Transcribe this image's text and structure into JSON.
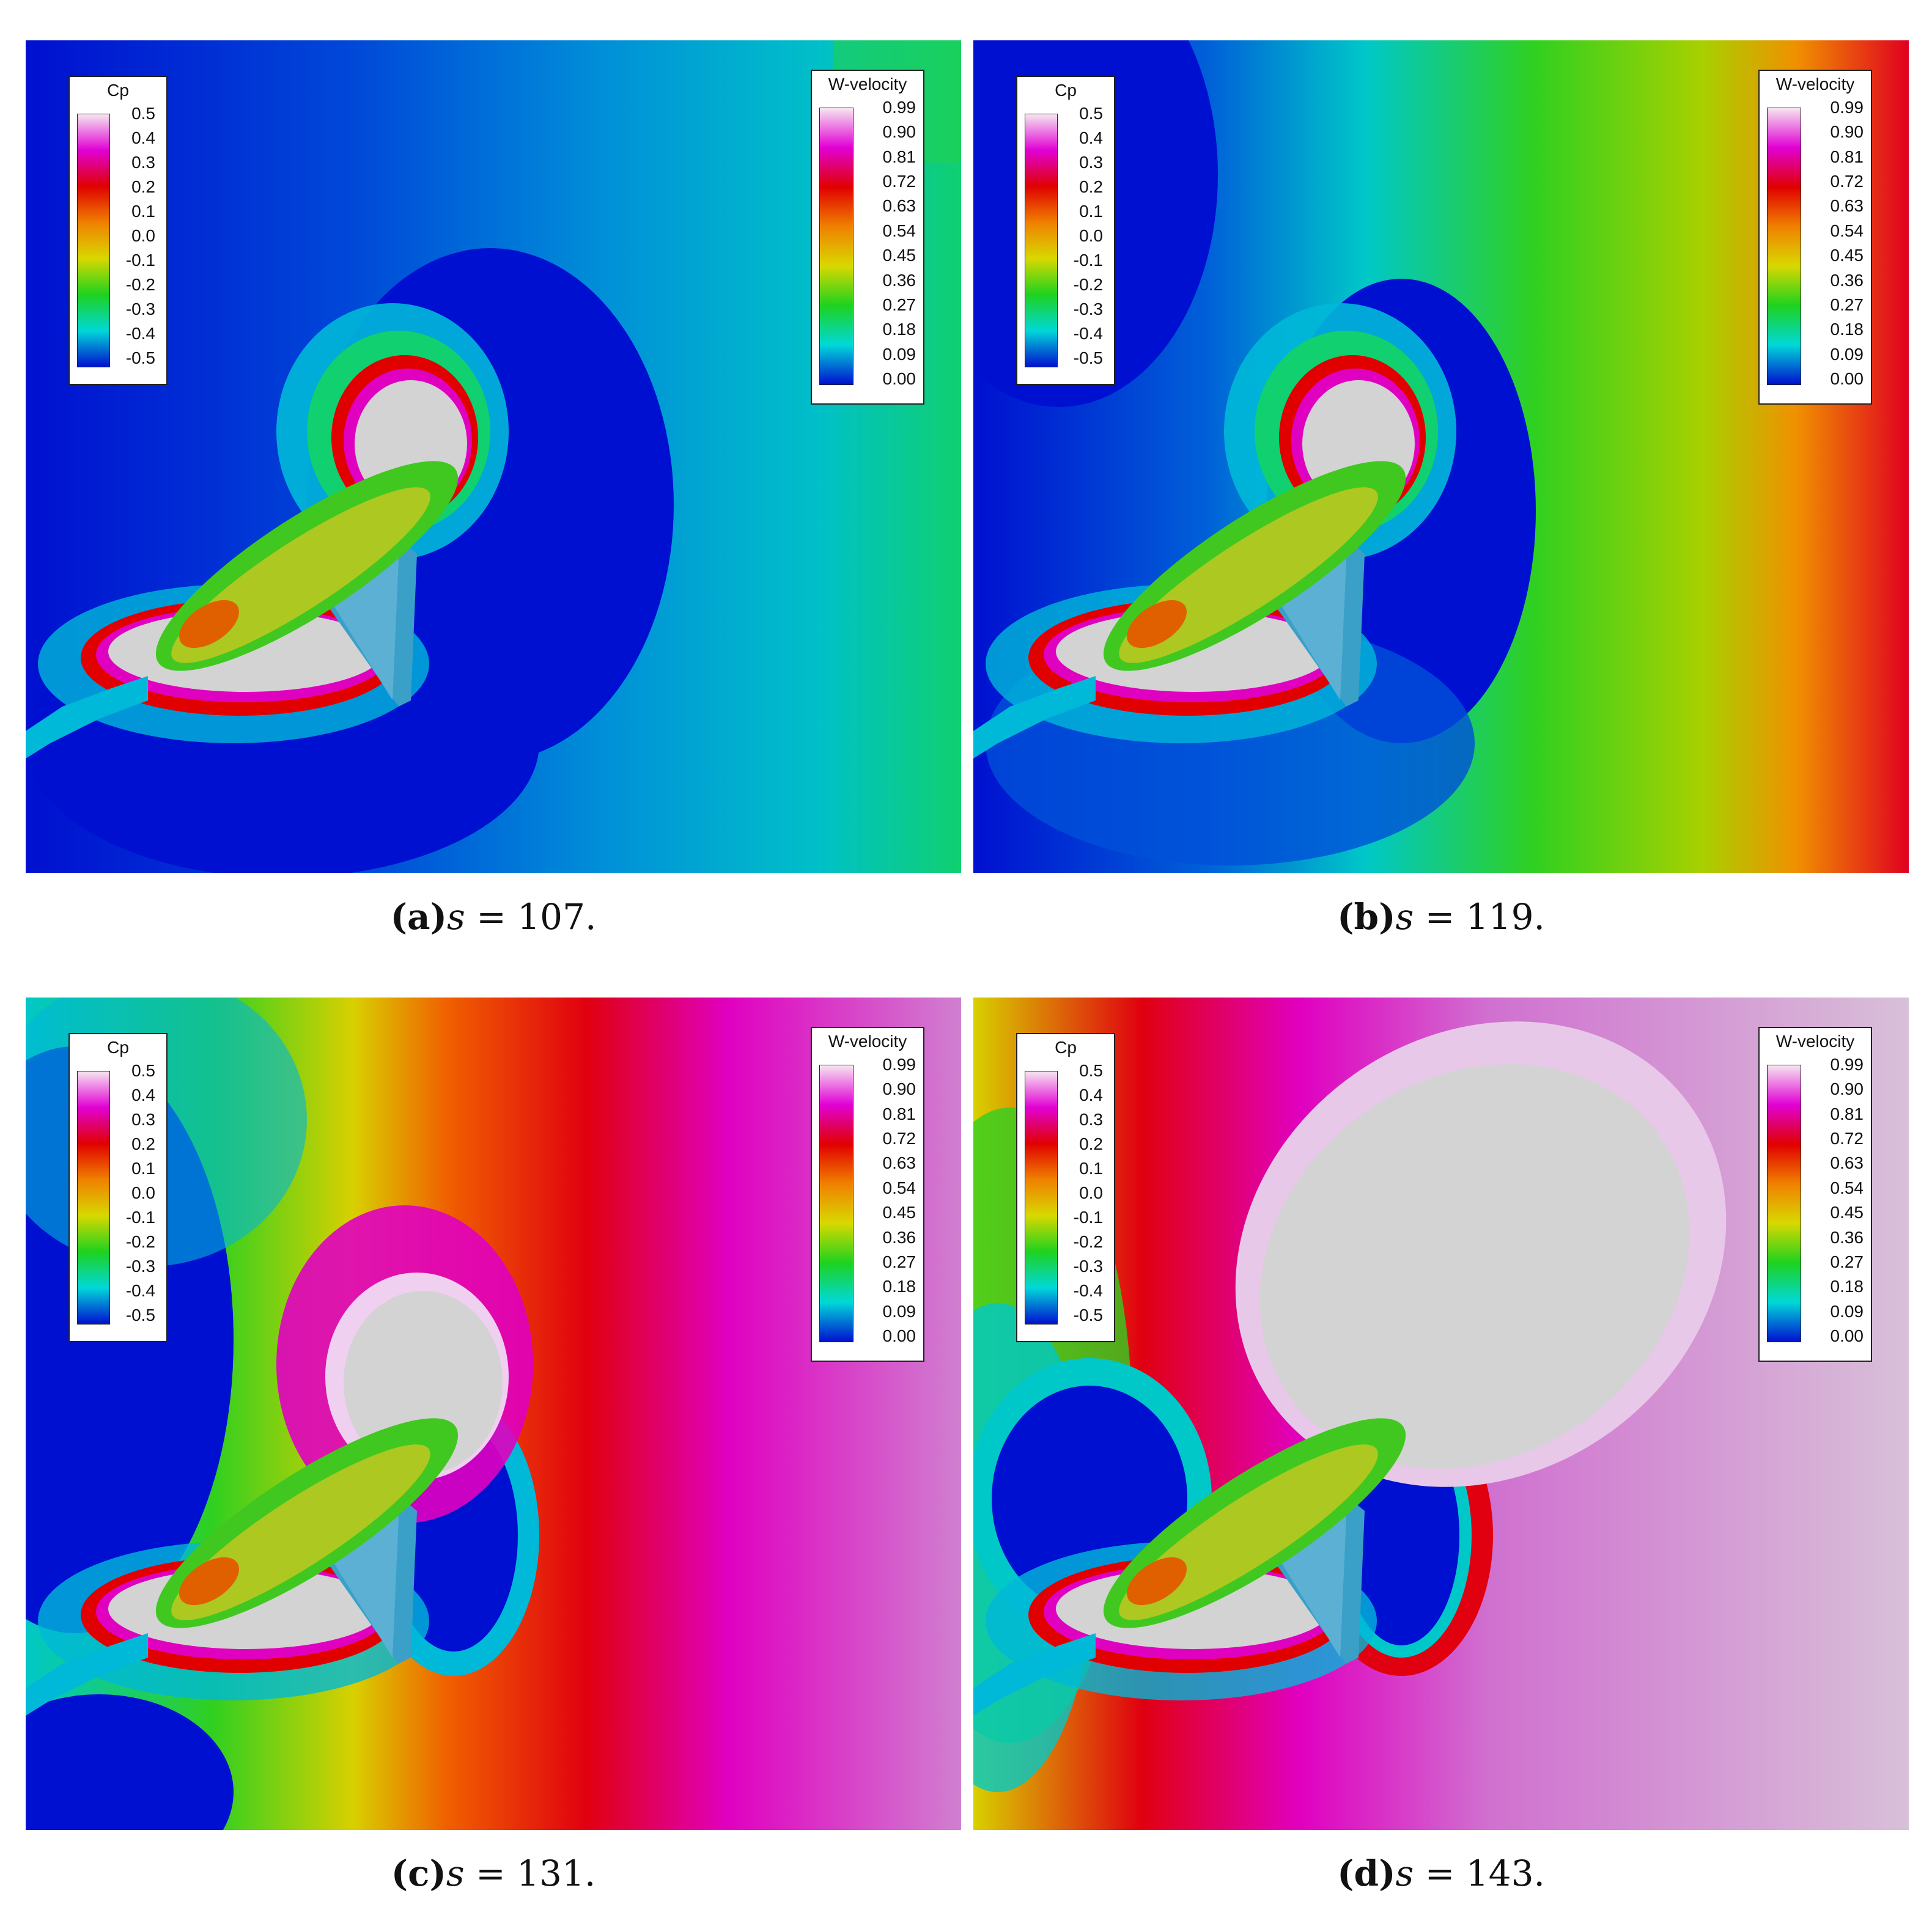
{
  "legend_titles": {
    "cp": "Cp",
    "w": "W-velocity"
  },
  "cp_ticks": [
    "0.5",
    "0.4",
    "0.3",
    "0.2",
    "0.1",
    "0.0",
    "-0.1",
    "-0.2",
    "-0.3",
    "-0.4",
    "-0.5"
  ],
  "w_ticks": [
    "0.99",
    "0.90",
    "0.81",
    "0.72",
    "0.63",
    "0.54",
    "0.45",
    "0.36",
    "0.27",
    "0.18",
    "0.09",
    "0.00"
  ],
  "colors": {
    "white_top": "#f6e6f0",
    "magenta": "#e100d4",
    "red": "#e00000",
    "orange": "#f08000",
    "yellow": "#d8d800",
    "green": "#1ed21e",
    "cyan": "#00d8d8",
    "blue": "#0010d0",
    "gray": "#d3d3d3"
  },
  "panels": [
    {
      "label": "(a)",
      "var": "s",
      "eq": " = 107."
    },
    {
      "label": "(b)",
      "var": "s",
      "eq": " = 119."
    },
    {
      "label": "(c)",
      "var": "s",
      "eq": " = 131."
    },
    {
      "label": "(d)",
      "var": "s",
      "eq": " = 143."
    }
  ]
}
